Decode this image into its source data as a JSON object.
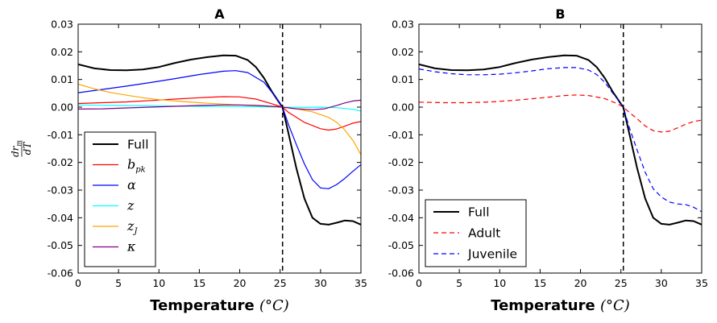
{
  "chart_data": [
    {
      "type": "line",
      "title": "A",
      "xlabel": "Temperature",
      "xlabel_unit": "(°C)",
      "ylabel_num": "dr",
      "ylabel_num_sub": "m",
      "ylabel_den": "dT",
      "xlim": [
        0,
        35
      ],
      "ylim": [
        -0.06,
        0.03
      ],
      "xticks": [
        0,
        5,
        10,
        15,
        20,
        25,
        30,
        35
      ],
      "yticks": [
        -0.06,
        -0.05,
        -0.04,
        -0.03,
        -0.02,
        -0.01,
        0.0,
        0.01,
        0.02,
        0.03
      ],
      "vline_x": 25.3,
      "legend_position": "lower-left",
      "series": [
        {
          "name": "Full",
          "color": "#000000",
          "width": 2,
          "dash": "solid",
          "x": [
            0,
            2,
            4,
            6,
            8,
            10,
            12,
            14,
            16,
            18,
            19.5,
            21,
            22,
            23,
            24,
            25,
            25.3,
            26,
            27,
            28,
            29,
            30,
            31,
            32,
            33,
            34,
            35
          ],
          "y": [
            0.0155,
            0.014,
            0.0134,
            0.0133,
            0.0136,
            0.0145,
            0.016,
            0.0172,
            0.0181,
            0.0187,
            0.0186,
            0.017,
            0.0145,
            0.0105,
            0.0055,
            0.0012,
            0.0,
            -0.009,
            -0.022,
            -0.033,
            -0.04,
            -0.0422,
            -0.0425,
            -0.0418,
            -0.041,
            -0.0412,
            -0.0425
          ]
        },
        {
          "name": "b_pk",
          "color": "#ff0000",
          "width": 1.2,
          "dash": "solid",
          "x": [
            0,
            3,
            6,
            9,
            12,
            15,
            18,
            20,
            22,
            24,
            25.3,
            26,
            28,
            30,
            31,
            32,
            33,
            34,
            35
          ],
          "y": [
            0.0013,
            0.0016,
            0.0019,
            0.0024,
            0.0029,
            0.0034,
            0.0038,
            0.0037,
            0.0029,
            0.0012,
            0.0,
            -0.0018,
            -0.0055,
            -0.0078,
            -0.0083,
            -0.0079,
            -0.0069,
            -0.0058,
            -0.0052
          ]
        },
        {
          "name": "α",
          "color": "#0000ff",
          "width": 1.2,
          "dash": "solid",
          "x": [
            0,
            3,
            6,
            9,
            12,
            15,
            18,
            19.5,
            21,
            23,
            24.5,
            25.3,
            26,
            27,
            28,
            29,
            30,
            31,
            32,
            33,
            34,
            35
          ],
          "y": [
            0.0052,
            0.0064,
            0.0076,
            0.0089,
            0.0103,
            0.0118,
            0.013,
            0.0132,
            0.0125,
            0.009,
            0.0035,
            0.0,
            -0.006,
            -0.0135,
            -0.0205,
            -0.0262,
            -0.0292,
            -0.0295,
            -0.028,
            -0.0258,
            -0.0232,
            -0.0208
          ]
        },
        {
          "name": "z",
          "color": "#00ffff",
          "width": 1.2,
          "dash": "solid",
          "x": [
            0,
            5,
            10,
            15,
            20,
            25.3,
            28,
            30,
            32,
            34,
            35
          ],
          "y": [
            0.0008,
            0.0006,
            0.0004,
            0.0003,
            0.0002,
            0.0,
            -0.0001,
            0.0,
            -0.0002,
            -0.0008,
            -0.0014
          ]
        },
        {
          "name": "z_J",
          "color": "#ffa500",
          "width": 1.2,
          "dash": "solid",
          "x": [
            0,
            2,
            4,
            6,
            8,
            10,
            13,
            16,
            20,
            23,
            25.3,
            27,
            29,
            31,
            32,
            33,
            34,
            35
          ],
          "y": [
            0.0083,
            0.0066,
            0.0053,
            0.0043,
            0.0034,
            0.0027,
            0.002,
            0.0014,
            0.0008,
            0.0004,
            0.0,
            -0.0006,
            -0.0017,
            -0.0037,
            -0.0055,
            -0.0082,
            -0.012,
            -0.0172
          ]
        },
        {
          "name": "κ",
          "color": "#800080",
          "width": 1.2,
          "dash": "solid",
          "x": [
            0,
            3,
            6,
            9,
            12,
            15,
            18,
            20,
            22,
            24,
            25.3,
            27,
            29,
            30.5,
            32,
            33,
            34,
            35
          ],
          "y": [
            -0.0007,
            -0.0006,
            -0.0003,
            0.0,
            0.0003,
            0.0006,
            0.0008,
            0.0008,
            0.0006,
            0.0003,
            0.0,
            -0.0006,
            -0.0009,
            -0.0006,
            0.0006,
            0.0015,
            0.0022,
            0.0025
          ]
        }
      ]
    },
    {
      "type": "line",
      "title": "B",
      "xlabel": "Temperature",
      "xlabel_unit": "(°C)",
      "xlim": [
        0,
        35
      ],
      "ylim": [
        -0.06,
        0.03
      ],
      "xticks": [
        0,
        5,
        10,
        15,
        20,
        25,
        30,
        35
      ],
      "yticks": [
        -0.06,
        -0.05,
        -0.04,
        -0.03,
        -0.02,
        -0.01,
        0.0,
        0.01,
        0.02,
        0.03
      ],
      "vline_x": 25.3,
      "legend_position": "lower-left",
      "series": [
        {
          "name": "Full",
          "color": "#000000",
          "width": 2,
          "dash": "solid",
          "x": [
            0,
            2,
            4,
            6,
            8,
            10,
            12,
            14,
            16,
            18,
            19.5,
            21,
            22,
            23,
            24,
            25,
            25.3,
            26,
            27,
            28,
            29,
            30,
            31,
            32,
            33,
            34,
            35
          ],
          "y": [
            0.0155,
            0.014,
            0.0134,
            0.0133,
            0.0136,
            0.0145,
            0.016,
            0.0172,
            0.0181,
            0.0187,
            0.0186,
            0.017,
            0.0145,
            0.0105,
            0.0055,
            0.0012,
            0.0,
            -0.009,
            -0.022,
            -0.033,
            -0.04,
            -0.0422,
            -0.0425,
            -0.0418,
            -0.041,
            -0.0412,
            -0.0425
          ]
        },
        {
          "name": "Adult",
          "color": "#ff0000",
          "width": 1.2,
          "dash": "dashed",
          "x": [
            0,
            3,
            6,
            9,
            12,
            15,
            18,
            19.5,
            21,
            23,
            24.5,
            25.3,
            26,
            27,
            28,
            29,
            30,
            31,
            32,
            33,
            34,
            35
          ],
          "y": [
            0.0018,
            0.0016,
            0.0016,
            0.0019,
            0.0025,
            0.0033,
            0.0042,
            0.0044,
            0.0042,
            0.0031,
            0.0013,
            0.0,
            -0.0018,
            -0.0042,
            -0.0068,
            -0.0085,
            -0.009,
            -0.0087,
            -0.0075,
            -0.0062,
            -0.0052,
            -0.0047
          ]
        },
        {
          "name": "Juvenile",
          "color": "#0000ff",
          "width": 1.2,
          "dash": "dashed",
          "x": [
            0,
            2,
            4,
            6,
            8,
            10,
            12,
            14,
            16,
            18,
            19.5,
            21,
            22,
            23,
            24,
            25,
            25.3,
            26,
            27,
            28,
            29,
            30,
            31,
            32,
            33,
            34,
            35
          ],
          "y": [
            0.0138,
            0.0128,
            0.0121,
            0.0117,
            0.0117,
            0.0119,
            0.0124,
            0.0131,
            0.0139,
            0.0143,
            0.0143,
            0.0134,
            0.0118,
            0.009,
            0.005,
            0.0013,
            0.0,
            -0.007,
            -0.0155,
            -0.0235,
            -0.0295,
            -0.0325,
            -0.0343,
            -0.035,
            -0.0352,
            -0.0362,
            -0.0378
          ]
        }
      ]
    }
  ]
}
